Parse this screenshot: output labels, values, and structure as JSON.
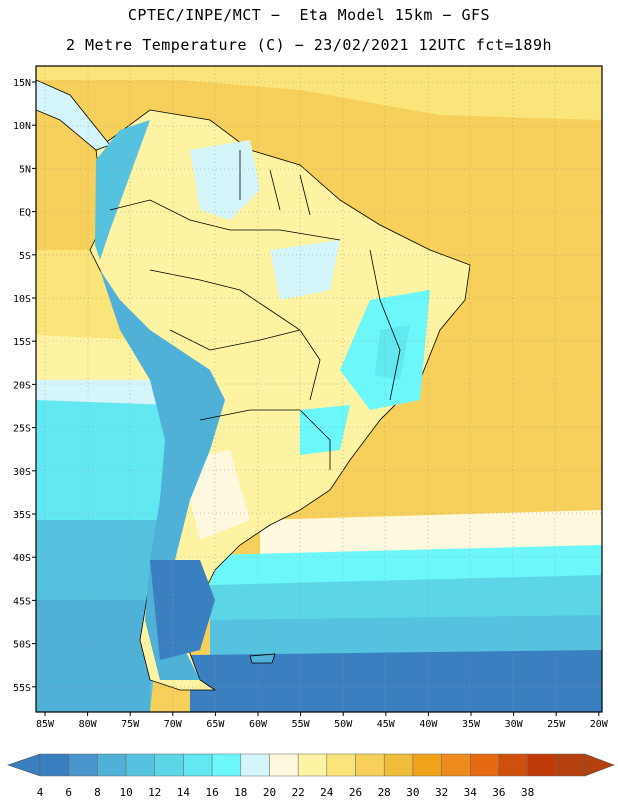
{
  "header": {
    "line1": "CPTEC/INPE/MCT −  Eta Model 15km − GFS",
    "line2": "2 Metre Temperature (C) − 23/02/2021 12UTC fct=189h"
  },
  "lat_labels": [
    "15N",
    "10N",
    "5N",
    "EQ",
    "5S",
    "10S",
    "15S",
    "20S",
    "25S",
    "30S",
    "35S",
    "40S",
    "45S",
    "50S",
    "55S"
  ],
  "lon_labels": [
    "85W",
    "80W",
    "75W",
    "70W",
    "65W",
    "60W",
    "55W",
    "50W",
    "45W",
    "40W",
    "35W",
    "30W",
    "25W",
    "20W"
  ],
  "colorbar": {
    "labels": [
      "4",
      "6",
      "8",
      "10",
      "12",
      "14",
      "16",
      "18",
      "20",
      "22",
      "24",
      "26",
      "28",
      "30",
      "32",
      "34",
      "36",
      "38"
    ],
    "colors": [
      "#3a7fc0",
      "#4a95cc",
      "#4fb0d8",
      "#55c3e0",
      "#5cd6e6",
      "#62e8f0",
      "#6cf8fb",
      "#d4f6fb",
      "#fdf8de",
      "#fdf3a2",
      "#fbe57a",
      "#f6d05b",
      "#f0bd3a",
      "#f0a31a",
      "#ee8a1e",
      "#e66a10",
      "#d14f0c",
      "#c03a08",
      "#b4400e"
    ]
  }
}
